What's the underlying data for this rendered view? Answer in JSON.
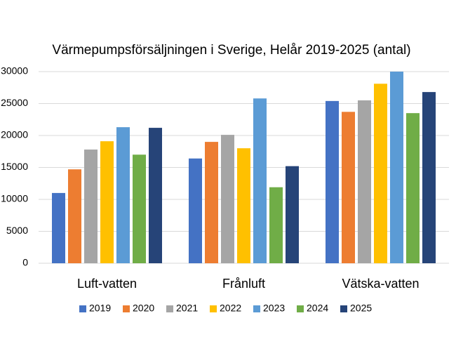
{
  "chart_data": {
    "type": "bar",
    "title": "Värmepumpsförsäljningen i Sverige, Helår 2019-2025 (antal)",
    "categories": [
      "Luft-vatten",
      "Frånluft",
      "Vätska-vatten"
    ],
    "series": [
      {
        "name": "2019",
        "color": "#4472c4",
        "values": [
          11000,
          16400,
          25400
        ]
      },
      {
        "name": "2020",
        "color": "#ed7d31",
        "values": [
          14700,
          19000,
          23700
        ]
      },
      {
        "name": "2021",
        "color": "#a5a5a5",
        "values": [
          17800,
          20100,
          25500
        ]
      },
      {
        "name": "2022",
        "color": "#ffc000",
        "values": [
          19100,
          18000,
          28100
        ]
      },
      {
        "name": "2023",
        "color": "#5b9bd5",
        "values": [
          21300,
          25800,
          30000
        ]
      },
      {
        "name": "2024",
        "color": "#70ad47",
        "values": [
          17000,
          11900,
          23500
        ]
      },
      {
        "name": "2025",
        "color": "#264478",
        "values": [
          21200,
          15200,
          26800
        ]
      }
    ],
    "ylim": [
      0,
      30000
    ],
    "yticks": [
      0,
      5000,
      10000,
      15000,
      20000,
      25000,
      30000
    ],
    "grid": true,
    "legend": "bottom"
  }
}
